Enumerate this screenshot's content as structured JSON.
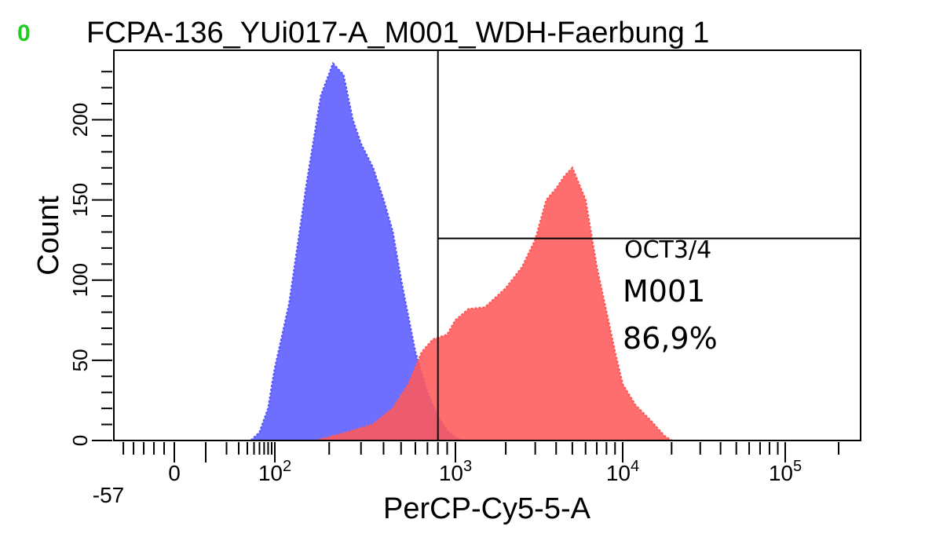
{
  "header": {
    "marker": "0",
    "marker_color": "#22cc22",
    "title": "FCPA-136_YUi017-A_M001_WDH-Faerbung 1"
  },
  "chart_data": {
    "type": "area",
    "title": "FCPA-136_YUi017-A_M001_WDH-Faerbung 1",
    "xlabel": "PerCP-Cy5-5-A",
    "ylabel": "Count",
    "x_scale": "biexponential",
    "xlim": [
      -57,
      200000
    ],
    "ylim": [
      0,
      240
    ],
    "x_tick_labels": [
      {
        "value": -57,
        "label": "-57"
      },
      {
        "value": 0,
        "label": "0"
      },
      {
        "value": 100,
        "label": "10",
        "sup": "2"
      },
      {
        "value": 1000,
        "label": "10",
        "sup": "3"
      },
      {
        "value": 10000,
        "label": "10",
        "sup": "4"
      },
      {
        "value": 100000,
        "label": "10",
        "sup": "5"
      }
    ],
    "y_ticks": [
      0,
      50,
      100,
      150,
      200
    ],
    "grid": false,
    "series": [
      {
        "color": "#5a5aff",
        "fill_opacity": 0.88,
        "x": [
          45,
          60,
          80,
          100,
          120,
          150,
          180,
          210,
          240,
          270,
          300,
          350,
          400,
          450,
          500,
          600,
          700,
          800,
          900,
          1000,
          1100
        ],
        "y": [
          0,
          5,
          20,
          45,
          85,
          160,
          215,
          235,
          228,
          200,
          185,
          170,
          150,
          130,
          100,
          55,
          30,
          15,
          6,
          2,
          0
        ]
      },
      {
        "color": "#ff5a5a",
        "fill_opacity": 0.88,
        "x": [
          170,
          250,
          350,
          450,
          550,
          650,
          750,
          900,
          1000,
          1200,
          1500,
          2000,
          2500,
          3000,
          3500,
          4000,
          4500,
          5000,
          6000,
          7000,
          8000,
          9000,
          10000,
          12000,
          15000,
          18000,
          20000
        ],
        "y": [
          0,
          5,
          10,
          20,
          35,
          55,
          63,
          66,
          75,
          82,
          83,
          95,
          108,
          125,
          150,
          157,
          165,
          170,
          150,
          108,
          80,
          55,
          35,
          22,
          12,
          3,
          0
        ]
      }
    ],
    "gate": {
      "name": "OCT3/4",
      "population": "M001",
      "percent": "86,9%",
      "x_value": 800,
      "y_value": 126
    }
  }
}
